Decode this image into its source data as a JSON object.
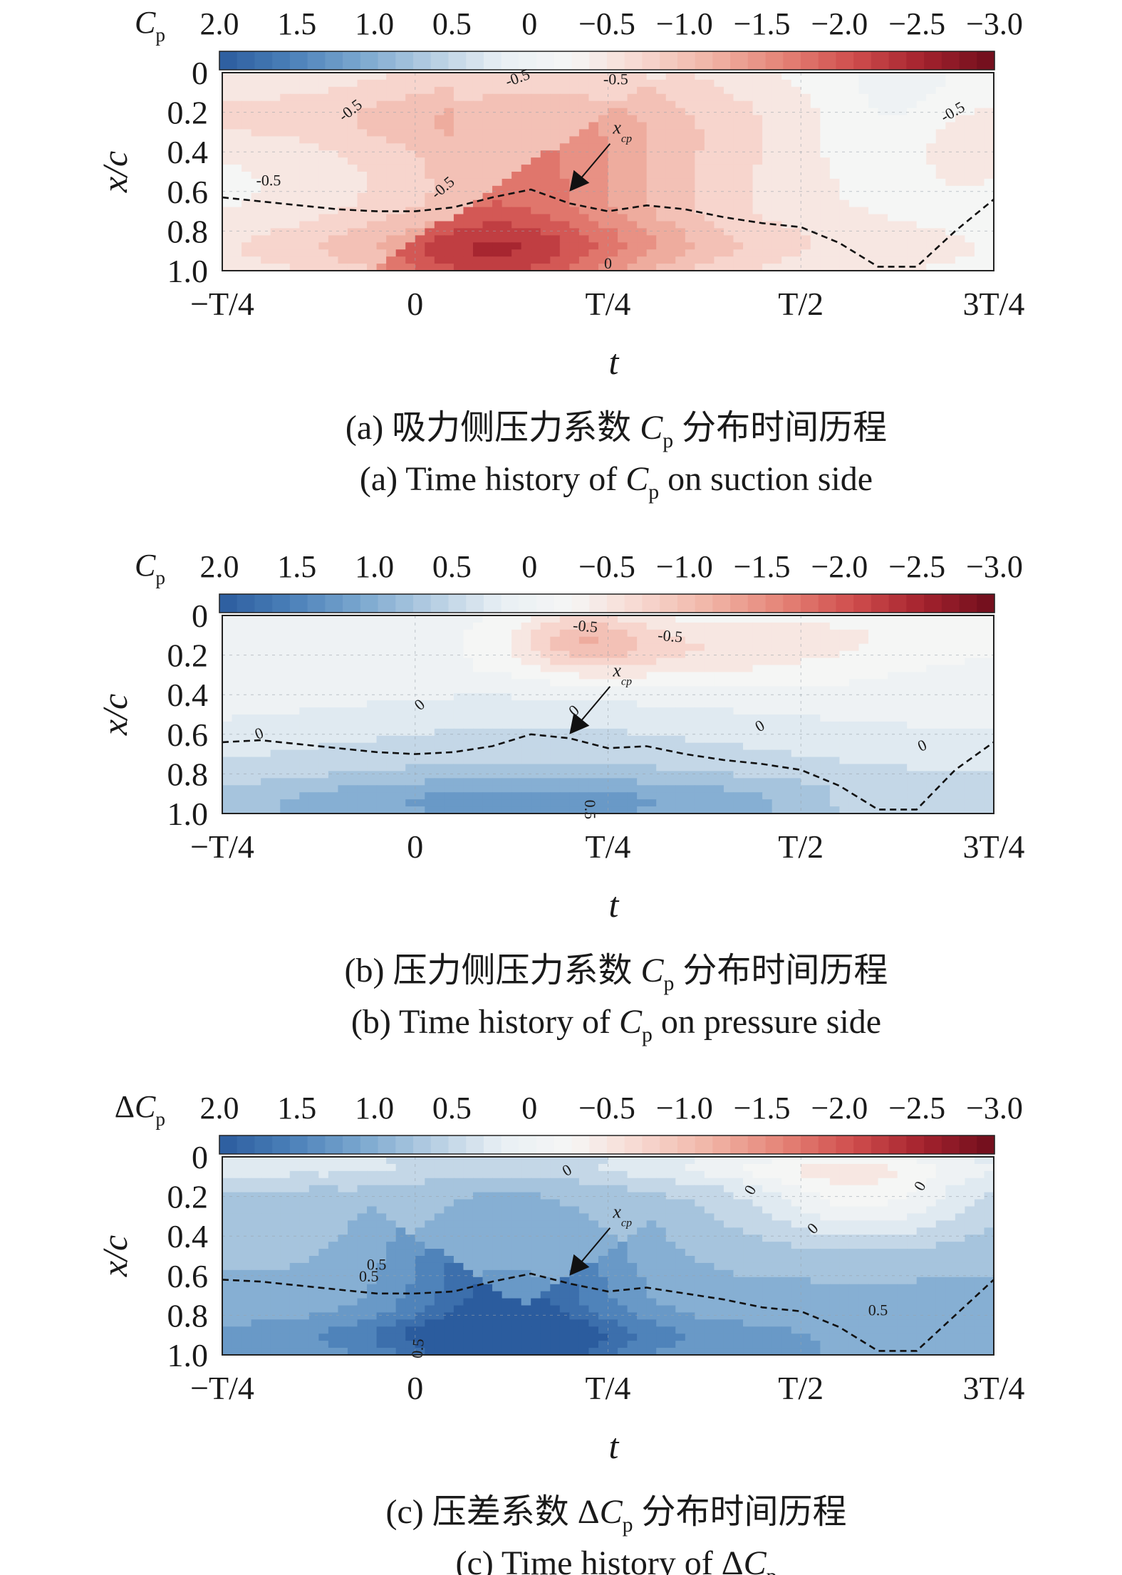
{
  "chart_data": [
    {
      "type": "heatmap",
      "colorbar_label": "C",
      "colorbar_label_sub": "p",
      "colorbar_label_prefix": "",
      "colorbar_ticks": [
        "2.0",
        "1.5",
        "1.0",
        "0.5",
        "0",
        "−0.5",
        "−1.0",
        "−1.5",
        "−2.0",
        "−2.5",
        "−3.0"
      ],
      "colorbar_range": [
        2.0,
        -3.0
      ],
      "xlabel": "t",
      "ylabel": "x/c",
      "x_ticks": [
        "−T/4",
        "0",
        "T/4",
        "T/2",
        "3T/4"
      ],
      "y_ticks": [
        "0",
        "0.2",
        "0.4",
        "0.6",
        "0.8",
        "1.0"
      ],
      "ylim": [
        0,
        1.0
      ],
      "x_domain": [
        -0.25,
        0.75
      ],
      "caption_zh_pre": "(a) 吸力侧压力系数 ",
      "caption_zh_var": "C",
      "caption_zh_sub": "p",
      "caption_zh_post": " 分布时间历程",
      "caption_en_pre": "(a) Time history of ",
      "caption_en_var": "C",
      "caption_en_sub": "p",
      "caption_en_post": " on suction side",
      "contour_labels": [
        "-0.5",
        "-0.5",
        "-0.5",
        "-0.5",
        "-0.5",
        "-0.5",
        "0"
      ],
      "annotation": "x",
      "annotation_sub": "cp",
      "xcp_curve": {
        "t": [
          -0.25,
          -0.2,
          -0.15,
          -0.1,
          -0.05,
          0.0,
          0.05,
          0.1,
          0.15,
          0.2,
          0.25,
          0.3,
          0.35,
          0.4,
          0.45,
          0.5,
          0.55,
          0.6,
          0.65,
          0.7,
          0.75
        ],
        "x": [
          0.63,
          0.65,
          0.67,
          0.69,
          0.7,
          0.7,
          0.68,
          0.63,
          0.59,
          0.66,
          0.7,
          0.67,
          0.69,
          0.73,
          0.76,
          0.78,
          0.86,
          0.98,
          0.98,
          0.8,
          0.64
        ]
      }
    },
    {
      "type": "heatmap",
      "colorbar_label": "C",
      "colorbar_label_sub": "p",
      "colorbar_label_prefix": "",
      "colorbar_ticks": [
        "2.0",
        "1.5",
        "1.0",
        "0.5",
        "0",
        "−0.5",
        "−1.0",
        "−1.5",
        "−2.0",
        "−2.5",
        "−3.0"
      ],
      "colorbar_range": [
        2.0,
        -3.0
      ],
      "xlabel": "t",
      "ylabel": "x/c",
      "x_ticks": [
        "−T/4",
        "0",
        "T/4",
        "T/2",
        "3T/4"
      ],
      "y_ticks": [
        "0",
        "0.2",
        "0.4",
        "0.6",
        "0.8",
        "1.0"
      ],
      "ylim": [
        0,
        1.0
      ],
      "x_domain": [
        -0.25,
        0.75
      ],
      "caption_zh_pre": "(b) 压力侧压力系数 ",
      "caption_zh_var": "C",
      "caption_zh_sub": "p",
      "caption_zh_post": " 分布时间历程",
      "caption_en_pre": "(b) Time history of ",
      "caption_en_var": "C",
      "caption_en_sub": "p",
      "caption_en_post": " on pressure side",
      "contour_labels": [
        "-0.5",
        "-0.5",
        "0",
        "0",
        "0",
        "0",
        "0",
        "0.5"
      ],
      "annotation": "x",
      "annotation_sub": "cp",
      "xcp_curve": {
        "t": [
          -0.25,
          -0.2,
          -0.15,
          -0.1,
          -0.05,
          0.0,
          0.05,
          0.1,
          0.15,
          0.2,
          0.25,
          0.3,
          0.35,
          0.4,
          0.45,
          0.5,
          0.55,
          0.6,
          0.65,
          0.7,
          0.75
        ],
        "x": [
          0.64,
          0.63,
          0.65,
          0.67,
          0.69,
          0.7,
          0.69,
          0.66,
          0.6,
          0.62,
          0.67,
          0.66,
          0.7,
          0.73,
          0.75,
          0.78,
          0.86,
          0.98,
          0.98,
          0.78,
          0.64
        ]
      }
    },
    {
      "type": "heatmap",
      "colorbar_label": "C",
      "colorbar_label_sub": "p",
      "colorbar_label_prefix": "Δ",
      "colorbar_ticks": [
        "2.0",
        "1.5",
        "1.0",
        "0.5",
        "0",
        "−0.5",
        "−1.0",
        "−1.5",
        "−2.0",
        "−2.5",
        "−3.0"
      ],
      "colorbar_range": [
        2.0,
        -3.0
      ],
      "xlabel": "t",
      "ylabel": "x/c",
      "x_ticks": [
        "−T/4",
        "0",
        "T/4",
        "T/2",
        "3T/4"
      ],
      "y_ticks": [
        "0",
        "0.2",
        "0.4",
        "0.6",
        "0.8",
        "1.0"
      ],
      "ylim": [
        0,
        1.0
      ],
      "x_domain": [
        -0.25,
        0.75
      ],
      "caption_zh_pre": "(c) 压差系数 Δ",
      "caption_zh_var": "C",
      "caption_zh_sub": "p",
      "caption_zh_post": " 分布时间历程",
      "caption_en_pre": "(c) Time history of Δ",
      "caption_en_var": "C",
      "caption_en_sub": "p",
      "caption_en_post": "",
      "contour_labels": [
        "0.5",
        "0.5",
        "0",
        "0",
        "0",
        "0",
        "0.5",
        "0.5"
      ],
      "annotation": "x",
      "annotation_sub": "cp",
      "xcp_curve": {
        "t": [
          -0.25,
          -0.2,
          -0.15,
          -0.1,
          -0.05,
          0.0,
          0.05,
          0.1,
          0.15,
          0.2,
          0.25,
          0.3,
          0.35,
          0.4,
          0.45,
          0.5,
          0.55,
          0.6,
          0.65,
          0.7,
          0.75
        ],
        "x": [
          0.62,
          0.63,
          0.65,
          0.67,
          0.69,
          0.69,
          0.68,
          0.63,
          0.59,
          0.64,
          0.68,
          0.66,
          0.69,
          0.72,
          0.76,
          0.78,
          0.86,
          0.98,
          0.98,
          0.8,
          0.62
        ]
      }
    }
  ],
  "colors": {
    "colormap": [
      "#2b5c9e",
      "#4a7fb8",
      "#7aa7cf",
      "#b4cde2",
      "#e8eff4",
      "#f6f6f5",
      "#f7d7cf",
      "#f0b3a5",
      "#e58376",
      "#cf4d4d",
      "#a3222d",
      "#6e0d1c"
    ],
    "contour_line": "#3a3a3a",
    "xcp_line": "#111111"
  }
}
